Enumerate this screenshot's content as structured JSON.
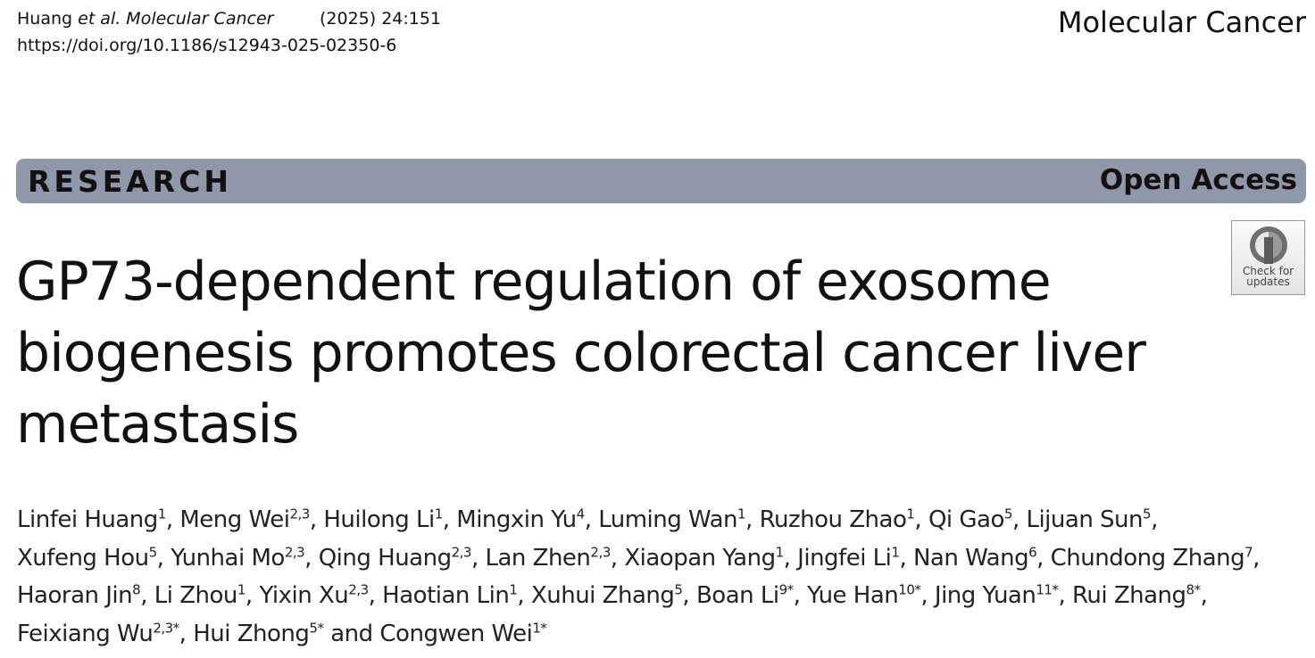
{
  "header": {
    "running_author": "Huang",
    "running_journal": "et al. Molecular Cancer",
    "citation": "(2025) 24:151",
    "doi": "https://doi.org/10.1186/s12943-025-02350-6",
    "journal": "Molecular Cancer"
  },
  "banner": {
    "type": "RESEARCH",
    "access": "Open Access"
  },
  "badge": {
    "lines": [
      "Check for",
      "updates"
    ]
  },
  "title_lines": [
    "GP73-dependent regulation of exosome",
    "biogenesis promotes colorectal cancer liver",
    "metastasis"
  ],
  "author_lines": [
    [
      {
        "name": "Linfei Huang",
        "sup": "1",
        "after": ", "
      },
      {
        "name": "Meng Wei",
        "sup": "2,3",
        "after": ", "
      },
      {
        "name": "Huilong Li",
        "sup": "1",
        "after": ", "
      },
      {
        "name": "Mingxin Yu",
        "sup": "4",
        "after": ", "
      },
      {
        "name": "Luming Wan",
        "sup": "1",
        "after": ", "
      },
      {
        "name": "Ruzhou Zhao",
        "sup": "1",
        "after": ", "
      },
      {
        "name": "Qi Gao",
        "sup": "5",
        "after": ", "
      },
      {
        "name": "Lijuan Sun",
        "sup": "5",
        "after": ","
      }
    ],
    [
      {
        "name": "Xufeng Hou",
        "sup": "5",
        "after": ", "
      },
      {
        "name": "Yunhai Mo",
        "sup": "2,3",
        "after": ", "
      },
      {
        "name": "Qing Huang",
        "sup": "2,3",
        "after": ", "
      },
      {
        "name": "Lan Zhen",
        "sup": "2,3",
        "after": ", "
      },
      {
        "name": "Xiaopan Yang",
        "sup": "1",
        "after": ", "
      },
      {
        "name": "Jingfei Li",
        "sup": "1",
        "after": ", "
      },
      {
        "name": "Nan Wang",
        "sup": "6",
        "after": ", "
      },
      {
        "name": "Chundong Zhang",
        "sup": "7",
        "after": ","
      }
    ],
    [
      {
        "name": "Haoran Jin",
        "sup": "8",
        "after": ", "
      },
      {
        "name": "Li Zhou",
        "sup": "1",
        "after": ", "
      },
      {
        "name": "Yixin Xu",
        "sup": "2,3",
        "after": ", "
      },
      {
        "name": "Haotian Lin",
        "sup": "1",
        "after": ", "
      },
      {
        "name": "Xuhui Zhang",
        "sup": "5",
        "after": ", "
      },
      {
        "name": "Boan Li",
        "sup": "9*",
        "after": ", "
      },
      {
        "name": "Yue Han",
        "sup": "10*",
        "after": ", "
      },
      {
        "name": "Jing Yuan",
        "sup": "11*",
        "after": ", "
      },
      {
        "name": "Rui Zhang",
        "sup": "8*",
        "after": ","
      }
    ],
    [
      {
        "name": "Feixiang Wu",
        "sup": "2,3*",
        "after": ", "
      },
      {
        "name": "Hui Zhong",
        "sup": "5*",
        "after": " and "
      },
      {
        "name": "Congwen Wei",
        "sup": "1*"
      }
    ]
  ]
}
